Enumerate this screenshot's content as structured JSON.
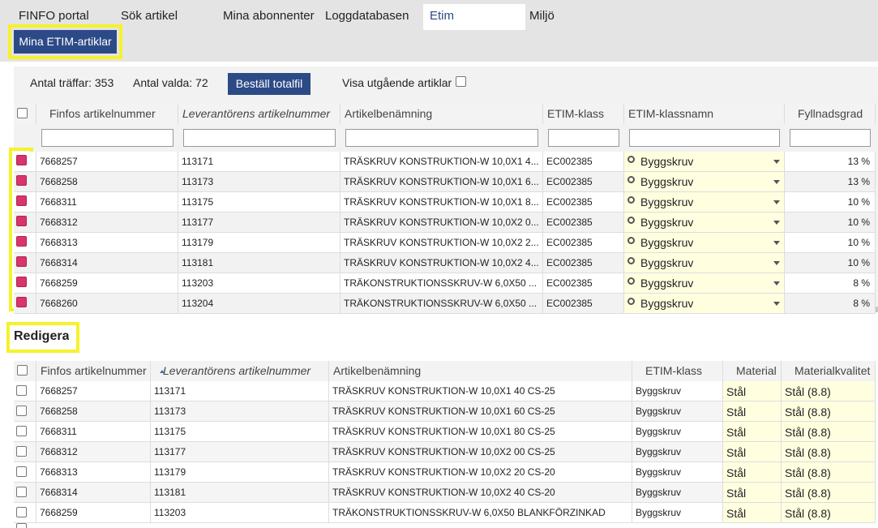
{
  "nav": {
    "tabs": [
      "FINFO portal",
      "Sök artikel",
      "Mina abonnenter",
      "Loggdatabasen",
      "Etim",
      "Miljö"
    ],
    "active": "Etim"
  },
  "subnav": {
    "button": "Mina ETIM-artiklar"
  },
  "toolbar": {
    "hits": "Antal träffar: 353",
    "selected": "Antal valda: 72",
    "order_button": "Beställ totalfil",
    "show_expired": "Visa utgående artiklar"
  },
  "top_table": {
    "headers": [
      "Finfos artikelnummer",
      "Leverantörens artikelnummer",
      "Artikelbenämning",
      "ETIM-klass",
      "ETIM-klassnamn",
      "Fyllnadsgrad"
    ],
    "rows": [
      [
        "7668257",
        "113171",
        "TRÄSKRUV KONSTRUKTION-W 10,0X1 4...",
        "EC002385",
        "Byggskruv",
        "13 %"
      ],
      [
        "7668258",
        "113173",
        "TRÄSKRUV KONSTRUKTION-W 10,0X1 6...",
        "EC002385",
        "Byggskruv",
        "13 %"
      ],
      [
        "7668311",
        "113175",
        "TRÄSKRUV KONSTRUKTION-W 10,0X1 8...",
        "EC002385",
        "Byggskruv",
        "10 %"
      ],
      [
        "7668312",
        "113177",
        "TRÄSKRUV KONSTRUKTION-W 10,0X2 0...",
        "EC002385",
        "Byggskruv",
        "10 %"
      ],
      [
        "7668313",
        "113179",
        "TRÄSKRUV KONSTRUKTION-W 10,0X2 2...",
        "EC002385",
        "Byggskruv",
        "10 %"
      ],
      [
        "7668314",
        "113181",
        "TRÄSKRUV KONSTRUKTION-W 10,0X2 4...",
        "EC002385",
        "Byggskruv",
        "10 %"
      ],
      [
        "7668259",
        "113203",
        "TRÄKONSTRUKTIONSSKRUV-W 6,0X50 ...",
        "EC002385",
        "Byggskruv",
        "8 %"
      ],
      [
        "7668260",
        "113204",
        "TRÄKONSTRUKTIONSSKRUV-W 6,0X50 ...",
        "EC002385",
        "Byggskruv",
        "8 %"
      ]
    ]
  },
  "edit": {
    "title": "Redigera"
  },
  "bottom_table": {
    "headers": [
      "Finfos artikelnummer",
      "Leverantörens artikelnummer",
      "Artikelbenämning",
      "ETIM-klass",
      "Material",
      "Materialkvalitet"
    ],
    "rows": [
      [
        "7668257",
        "113171",
        "TRÄSKRUV KONSTRUKTION-W 10,0X1 40 CS-25",
        "Byggskruv",
        "Stål",
        "Stål (8.8)"
      ],
      [
        "7668258",
        "113173",
        "TRÄSKRUV KONSTRUKTION-W 10,0X1 60 CS-25",
        "Byggskruv",
        "Stål",
        "Stål (8.8)"
      ],
      [
        "7668311",
        "113175",
        "TRÄSKRUV KONSTRUKTION-W 10,0X1 80 CS-25",
        "Byggskruv",
        "Stål",
        "Stål (8.8)"
      ],
      [
        "7668312",
        "113177",
        "TRÄSKRUV KONSTRUKTION-W 10,0X2 00 CS-25",
        "Byggskruv",
        "Stål",
        "Stål (8.8)"
      ],
      [
        "7668313",
        "113179",
        "TRÄSKRUV KONSTRUKTION-W 10,0X2 20 CS-20",
        "Byggskruv",
        "Stål",
        "Stål (8.8)"
      ],
      [
        "7668314",
        "113181",
        "TRÄSKRUV KONSTRUKTION-W 10,0X2 40 CS-20",
        "Byggskruv",
        "Stål",
        "Stål (8.8)"
      ],
      [
        "7668259",
        "113203",
        "TRÄKONSTRUKTIONSSKRUV-W 6,0X50 BLANKFÖRZINKAD",
        "Byggskruv",
        "Stål",
        "Stål (8.8)"
      ]
    ]
  }
}
